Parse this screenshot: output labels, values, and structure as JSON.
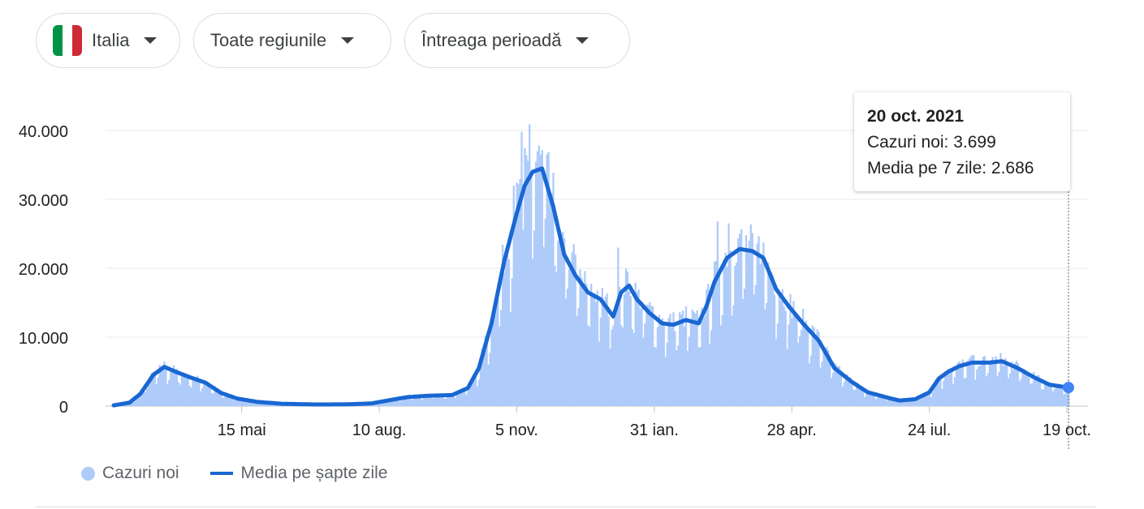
{
  "filters": {
    "country": {
      "label": "Italia",
      "flag_colors": [
        "#009246",
        "#ffffff",
        "#ce2b37"
      ]
    },
    "region": {
      "label": "Toate regiunile"
    },
    "period": {
      "label": "Întreaga perioadă"
    }
  },
  "tooltip": {
    "date": "20 oct. 2021",
    "new_cases": "Cazuri noi: 3.699",
    "avg": "Media pe 7 zile: 2.686"
  },
  "legend": {
    "new_cases": "Cazuri noi",
    "avg": "Media pe șapte zile"
  },
  "colors": {
    "bars": "#aecbfa",
    "line": "#1967d2",
    "grid": "#e8eaed",
    "text": "#202124"
  },
  "chart_data": {
    "type": "bar",
    "title": "",
    "xlabel": "",
    "ylabel": "",
    "x_start": "2020-02-24",
    "x_end": "2021-10-20",
    "x_ticks": [
      {
        "date": "2020-05-15",
        "label": "15 mai"
      },
      {
        "date": "2020-08-10",
        "label": "10 aug."
      },
      {
        "date": "2020-11-05",
        "label": "5 nov."
      },
      {
        "date": "2021-01-31",
        "label": "31 ian."
      },
      {
        "date": "2021-04-28",
        "label": "28 apr."
      },
      {
        "date": "2021-07-24",
        "label": "24 iul."
      },
      {
        "date": "2021-10-19",
        "label": "19 oct."
      }
    ],
    "y_ticks": [
      {
        "value": 0,
        "label": "0"
      },
      {
        "value": 10000,
        "label": "10.000"
      },
      {
        "value": 20000,
        "label": "20.000"
      },
      {
        "value": 30000,
        "label": "30.000"
      },
      {
        "value": 40000,
        "label": "40.000"
      }
    ],
    "ylim": [
      0,
      42000
    ],
    "grid": true,
    "legend_position": "bottom-left",
    "series": [
      {
        "name": "Media pe șapte zile",
        "type": "line",
        "points": [
          [
            "2020-02-24",
            100
          ],
          [
            "2020-03-05",
            500
          ],
          [
            "2020-03-12",
            1800
          ],
          [
            "2020-03-20",
            4500
          ],
          [
            "2020-03-27",
            5700
          ],
          [
            "2020-04-03",
            5000
          ],
          [
            "2020-04-12",
            4200
          ],
          [
            "2020-04-22",
            3400
          ],
          [
            "2020-05-02",
            1900
          ],
          [
            "2020-05-12",
            1100
          ],
          [
            "2020-05-25",
            600
          ],
          [
            "2020-06-10",
            330
          ],
          [
            "2020-07-01",
            230
          ],
          [
            "2020-07-20",
            250
          ],
          [
            "2020-08-05",
            380
          ],
          [
            "2020-08-20",
            1000
          ],
          [
            "2020-08-28",
            1300
          ],
          [
            "2020-09-10",
            1500
          ],
          [
            "2020-09-25",
            1600
          ],
          [
            "2020-10-05",
            2600
          ],
          [
            "2020-10-12",
            5500
          ],
          [
            "2020-10-20",
            12000
          ],
          [
            "2020-10-28",
            21000
          ],
          [
            "2020-11-05",
            28000
          ],
          [
            "2020-11-10",
            32000
          ],
          [
            "2020-11-15",
            34000
          ],
          [
            "2020-11-21",
            34500
          ],
          [
            "2020-11-28",
            29000
          ],
          [
            "2020-12-05",
            22000
          ],
          [
            "2020-12-12",
            19000
          ],
          [
            "2020-12-20",
            16500
          ],
          [
            "2020-12-28",
            15500
          ],
          [
            "2021-01-05",
            13000
          ],
          [
            "2021-01-10",
            16500
          ],
          [
            "2021-01-15",
            17500
          ],
          [
            "2021-01-20",
            15500
          ],
          [
            "2021-01-28",
            13500
          ],
          [
            "2021-02-05",
            12000
          ],
          [
            "2021-02-12",
            11800
          ],
          [
            "2021-02-20",
            12500
          ],
          [
            "2021-02-28",
            12000
          ],
          [
            "2021-03-05",
            14500
          ],
          [
            "2021-03-10",
            18000
          ],
          [
            "2021-03-18",
            21500
          ],
          [
            "2021-03-26",
            22800
          ],
          [
            "2021-04-03",
            22500
          ],
          [
            "2021-04-10",
            21500
          ],
          [
            "2021-04-18",
            17000
          ],
          [
            "2021-04-26",
            14500
          ],
          [
            "2021-05-05",
            12000
          ],
          [
            "2021-05-15",
            9500
          ],
          [
            "2021-05-25",
            5500
          ],
          [
            "2021-06-05",
            3500
          ],
          [
            "2021-06-15",
            2000
          ],
          [
            "2021-06-28",
            1200
          ],
          [
            "2021-07-05",
            800
          ],
          [
            "2021-07-15",
            1000
          ],
          [
            "2021-07-24",
            2000
          ],
          [
            "2021-07-30",
            4000
          ],
          [
            "2021-08-05",
            5000
          ],
          [
            "2021-08-12",
            5800
          ],
          [
            "2021-08-20",
            6300
          ],
          [
            "2021-08-30",
            6300
          ],
          [
            "2021-09-08",
            6500
          ],
          [
            "2021-09-18",
            5500
          ],
          [
            "2021-09-28",
            4200
          ],
          [
            "2021-10-08",
            3100
          ],
          [
            "2021-10-20",
            2686
          ]
        ]
      },
      {
        "name": "Cazuri noi",
        "type": "bar",
        "spikes": [
          [
            "2020-11-13",
            40900
          ],
          [
            "2020-11-08",
            39800
          ],
          [
            "2020-11-18",
            37000
          ],
          [
            "2020-11-20",
            36500
          ],
          [
            "2020-11-03",
            32000
          ],
          [
            "2020-12-03",
            24800
          ],
          [
            "2020-12-11",
            23500
          ],
          [
            "2021-01-08",
            23000
          ],
          [
            "2021-01-14",
            19500
          ],
          [
            "2021-03-12",
            26800
          ],
          [
            "2021-03-19",
            26500
          ],
          [
            "2021-03-26",
            25000
          ],
          [
            "2021-04-01",
            24000
          ],
          [
            "2021-04-09",
            22000
          ],
          [
            "2021-04-16",
            19000
          ],
          [
            "2021-08-20",
            7400
          ],
          [
            "2021-09-07",
            7700
          ],
          [
            "2021-10-20",
            3699
          ]
        ]
      }
    ]
  }
}
